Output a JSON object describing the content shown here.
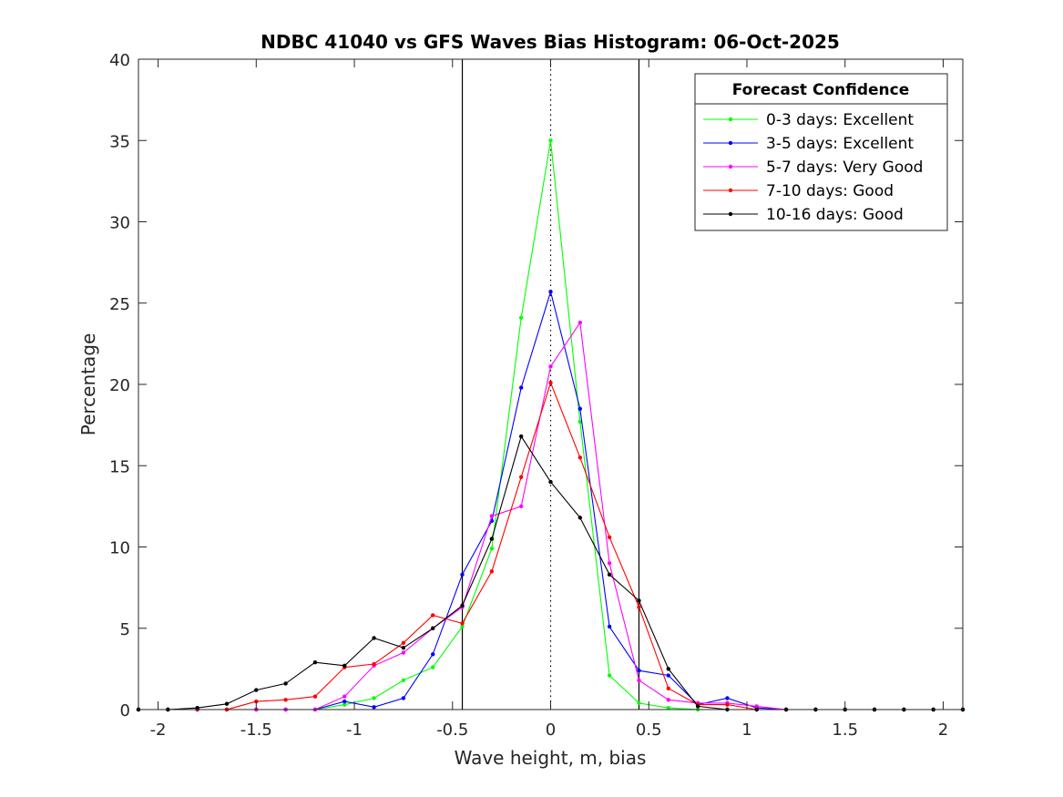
{
  "chart_data": {
    "type": "line",
    "title": "NDBC 41040 vs GFS Waves Bias Histogram: 06-Oct-2025",
    "xlabel": "Wave height, m, bias",
    "ylabel": "Percentage",
    "xlim": [
      -2.1,
      2.1
    ],
    "ylim": [
      0,
      40
    ],
    "xticks": [
      -2,
      -1.5,
      -1,
      -0.5,
      0,
      0.5,
      1,
      1.5,
      2
    ],
    "xtick_labels": [
      "-2",
      "-1.5",
      "-1",
      "-0.5",
      "0",
      "0.5",
      "1",
      "1.5",
      "2"
    ],
    "yticks": [
      0,
      5,
      10,
      15,
      20,
      25,
      30,
      35,
      40
    ],
    "ytick_labels": [
      "0",
      "5",
      "10",
      "15",
      "20",
      "25",
      "30",
      "35",
      "40"
    ],
    "reference_lines": {
      "solid_x": [
        -0.45,
        0.45
      ],
      "dotted_x": [
        0
      ]
    },
    "legend_title": "Forecast Confidence",
    "legend_position": "top-right",
    "x": [
      -2.1,
      -1.95,
      -1.8,
      -1.65,
      -1.5,
      -1.35,
      -1.2,
      -1.05,
      -0.9,
      -0.75,
      -0.6,
      -0.45,
      -0.3,
      -0.15,
      0,
      0.15,
      0.3,
      0.45,
      0.6,
      0.75,
      0.9,
      1.05,
      1.2,
      1.35,
      1.5,
      1.65,
      1.8,
      1.95,
      2.1
    ],
    "series": [
      {
        "name": "0-3 days: Excellent",
        "color": "#00ff00",
        "values": [
          0,
          0,
          0,
          0,
          0,
          0,
          0,
          0.3,
          0.7,
          1.8,
          2.6,
          5.1,
          9.9,
          24.1,
          35.0,
          17.7,
          2.1,
          0.4,
          0.1,
          0,
          0,
          0,
          0,
          0,
          0,
          0,
          0,
          0,
          0
        ]
      },
      {
        "name": "3-5 days: Excellent",
        "color": "#0000ff",
        "values": [
          0,
          0,
          0,
          0,
          0,
          0,
          0,
          0.5,
          0.15,
          0.7,
          3.4,
          8.3,
          11.6,
          19.8,
          25.7,
          18.5,
          5.1,
          2.4,
          2.1,
          0.3,
          0.7,
          0.1,
          0,
          0,
          0,
          0,
          0,
          0,
          0
        ]
      },
      {
        "name": "5-7 days: Very Good",
        "color": "#ff00ff",
        "values": [
          0,
          0,
          0,
          0,
          0,
          0,
          0,
          0.8,
          2.7,
          3.5,
          5.0,
          6.3,
          11.9,
          12.5,
          21.1,
          23.8,
          9.0,
          1.8,
          0.6,
          0.4,
          0.4,
          0.2,
          0,
          0,
          0,
          0,
          0,
          0,
          0
        ]
      },
      {
        "name": "7-10 days: Good",
        "color": "#ff0000",
        "values": [
          0,
          0,
          0,
          0,
          0.5,
          0.6,
          0.8,
          2.6,
          2.8,
          4.1,
          5.8,
          5.3,
          8.5,
          14.3,
          20.1,
          15.5,
          10.6,
          6.3,
          1.3,
          0.3,
          0.3,
          0,
          0,
          0,
          0,
          0,
          0,
          0,
          0
        ]
      },
      {
        "name": "10-16 days: Good",
        "color": "#000000",
        "values": [
          0,
          0,
          0.1,
          0.35,
          1.2,
          1.6,
          2.9,
          2.7,
          4.4,
          3.8,
          5.0,
          6.4,
          10.5,
          16.8,
          14.0,
          11.8,
          8.3,
          6.7,
          2.5,
          0.2,
          0,
          0,
          0,
          0,
          0,
          0,
          0,
          0,
          0
        ]
      }
    ]
  }
}
